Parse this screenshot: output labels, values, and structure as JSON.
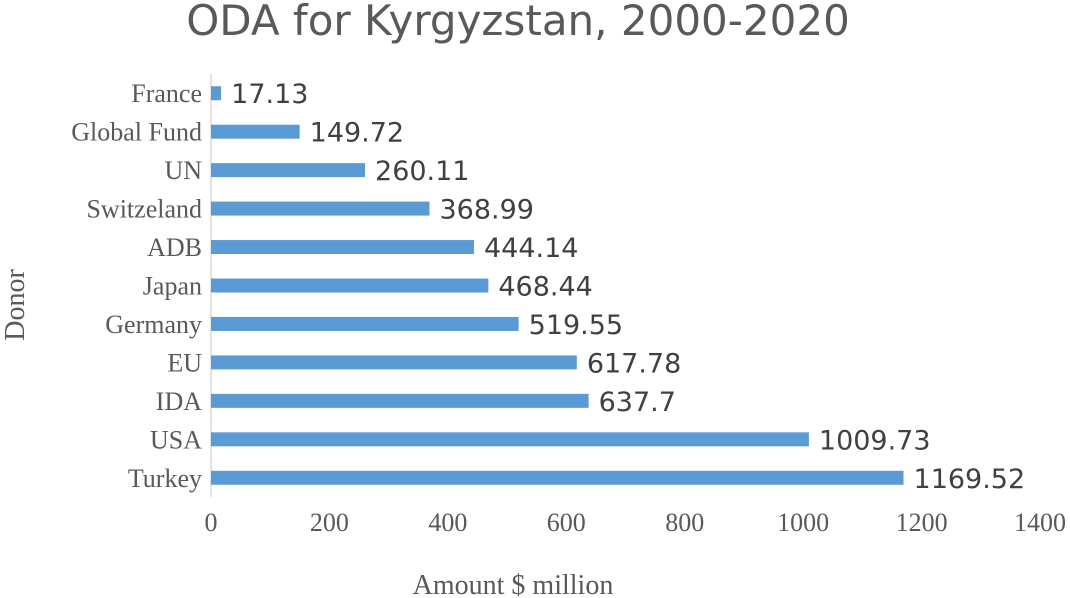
{
  "chart_data": {
    "type": "bar",
    "orientation": "horizontal",
    "title": "ODA for  Kyrgyzstan, 2000-2020",
    "xlabel": "Amount  $ million",
    "ylabel": "Donor",
    "categories": [
      "Turkey",
      "USA",
      "IDA",
      "EU",
      "Germany",
      "Japan",
      "ADB",
      "Switzeland",
      "UN",
      "Global Fund",
      "France"
    ],
    "values": [
      1169.52,
      1009.73,
      637.7,
      617.78,
      519.55,
      468.44,
      444.14,
      368.99,
      260.11,
      149.72,
      17.13
    ],
    "data_labels": [
      "1169.52",
      "1009.73",
      "637.7",
      "617.78",
      "519.55",
      "468.44",
      "444.14",
      "368.99",
      "260.11",
      "149.72",
      "17.13"
    ],
    "xlim": [
      0,
      1400
    ],
    "xticks": [
      0,
      200,
      400,
      600,
      800,
      1000,
      1200,
      1400
    ],
    "grid": false,
    "legend": "none",
    "bar_color": "#5b9bd5"
  }
}
